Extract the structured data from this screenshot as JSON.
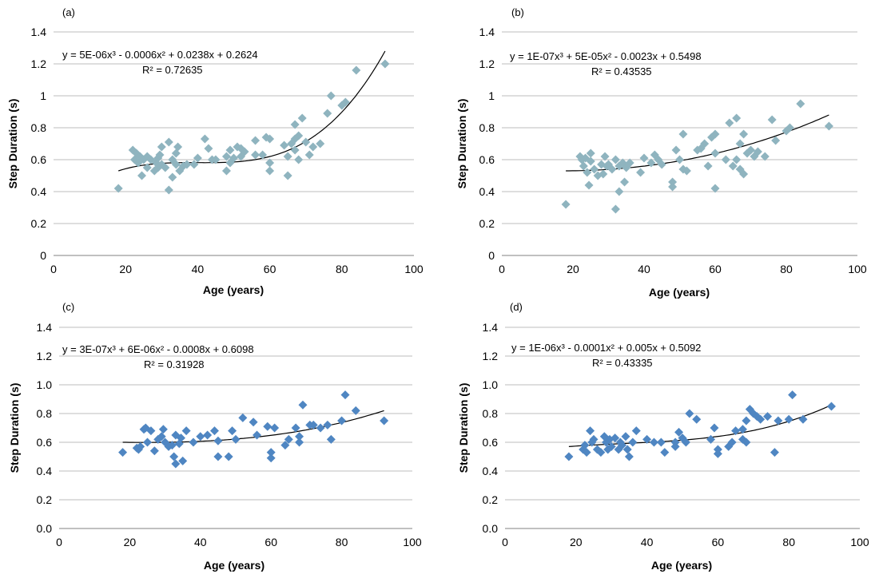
{
  "chart_data": [
    {
      "type": "scatter",
      "panel_label": "(a)",
      "xlabel": "Age (years)",
      "ylabel": "Step Duration (s)",
      "xlim": [
        0,
        100
      ],
      "ylim": [
        0,
        1.4
      ],
      "xticks": [
        "0",
        "20",
        "40",
        "60",
        "80",
        "100"
      ],
      "yticks": [
        "0",
        "0.2",
        "0.4",
        "0.6",
        "0.8",
        "1",
        "1.2",
        "1.4"
      ],
      "marker_color": "#8fb4bf",
      "grid": "horizontal",
      "equation": "y = 5E-06x³ - 0.0006x² + 0.0238x + 0.2624",
      "r_squared": "R² = 0.72635",
      "trend": {
        "coefficients": [
          5e-06,
          -0.0006,
          0.0238,
          0.2624
        ],
        "x_range": [
          18,
          92
        ],
        "y_at_x_min": 0.53,
        "y_at_x_max": 1.28
      },
      "points": [
        [
          18,
          0.42
        ],
        [
          22,
          0.66
        ],
        [
          22.5,
          0.6
        ],
        [
          23,
          0.64
        ],
        [
          23.5,
          0.58
        ],
        [
          24,
          0.62
        ],
        [
          24.5,
          0.5
        ],
        [
          25,
          0.6
        ],
        [
          26,
          0.62
        ],
        [
          26,
          0.55
        ],
        [
          27,
          0.6
        ],
        [
          28,
          0.53
        ],
        [
          28.5,
          0.58
        ],
        [
          29,
          0.61
        ],
        [
          29,
          0.55
        ],
        [
          29.5,
          0.63
        ],
        [
          30,
          0.68
        ],
        [
          30,
          0.57
        ],
        [
          31,
          0.55
        ],
        [
          32,
          0.71
        ],
        [
          32,
          0.41
        ],
        [
          33,
          0.49
        ],
        [
          33,
          0.6
        ],
        [
          34,
          0.57
        ],
        [
          34,
          0.64
        ],
        [
          34.5,
          0.68
        ],
        [
          35,
          0.53
        ],
        [
          36,
          0.56
        ],
        [
          37,
          0.57
        ],
        [
          39,
          0.57
        ],
        [
          40,
          0.61
        ],
        [
          42,
          0.73
        ],
        [
          43,
          0.67
        ],
        [
          44,
          0.6
        ],
        [
          45,
          0.6
        ],
        [
          48,
          0.62
        ],
        [
          48,
          0.53
        ],
        [
          49,
          0.66
        ],
        [
          49,
          0.58
        ],
        [
          50,
          0.61
        ],
        [
          51,
          0.68
        ],
        [
          52,
          0.62
        ],
        [
          52,
          0.67
        ],
        [
          53,
          0.65
        ],
        [
          56,
          0.63
        ],
        [
          56,
          0.72
        ],
        [
          58,
          0.63
        ],
        [
          59,
          0.74
        ],
        [
          60,
          0.73
        ],
        [
          60,
          0.58
        ],
        [
          60,
          0.53
        ],
        [
          64,
          0.69
        ],
        [
          65,
          0.5
        ],
        [
          65,
          0.62
        ],
        [
          66,
          0.7
        ],
        [
          67,
          0.66
        ],
        [
          67,
          0.73
        ],
        [
          67,
          0.82
        ],
        [
          68,
          0.6
        ],
        [
          68,
          0.75
        ],
        [
          69,
          0.86
        ],
        [
          70,
          0.71
        ],
        [
          71,
          0.63
        ],
        [
          72,
          0.68
        ],
        [
          74,
          0.7
        ],
        [
          76,
          0.89
        ],
        [
          77,
          1.0
        ],
        [
          80,
          0.94
        ],
        [
          81,
          0.96
        ],
        [
          84,
          1.16
        ],
        [
          92,
          1.2
        ]
      ]
    },
    {
      "type": "scatter",
      "panel_label": "(b)",
      "xlabel": "Age (years)",
      "ylabel": "Step Duration (s)",
      "xlim": [
        0,
        100
      ],
      "ylim": [
        0,
        1.4
      ],
      "xticks": [
        "0",
        "20",
        "40",
        "60",
        "80",
        "100"
      ],
      "yticks": [
        "0",
        "0.2",
        "0.4",
        "0.6",
        "0.8",
        "1",
        "1.2",
        "1.4"
      ],
      "marker_color": "#8fb4bf",
      "grid": "horizontal",
      "equation": "y = 1E-07x³ + 5E-05x² - 0.0023x + 0.5498",
      "r_squared": "R² = 0.43535",
      "trend": {
        "coefficients": [
          1e-07,
          5e-05,
          -0.0023,
          0.5498
        ],
        "x_range": [
          18,
          92
        ],
        "y_at_x_min": 0.53,
        "y_at_x_max": 0.88
      },
      "points": [
        [
          18,
          0.32
        ],
        [
          22,
          0.62
        ],
        [
          22.5,
          0.6
        ],
        [
          23,
          0.56
        ],
        [
          23.5,
          0.61
        ],
        [
          24,
          0.52
        ],
        [
          24.5,
          0.44
        ],
        [
          25,
          0.64
        ],
        [
          25,
          0.59
        ],
        [
          26,
          0.54
        ],
        [
          27,
          0.5
        ],
        [
          28,
          0.57
        ],
        [
          28.5,
          0.51
        ],
        [
          29,
          0.62
        ],
        [
          29.5,
          0.56
        ],
        [
          30,
          0.57
        ],
        [
          31,
          0.54
        ],
        [
          32,
          0.29
        ],
        [
          32,
          0.6
        ],
        [
          33,
          0.4
        ],
        [
          33,
          0.56
        ],
        [
          34,
          0.58
        ],
        [
          34.5,
          0.46
        ],
        [
          35,
          0.55
        ],
        [
          36,
          0.58
        ],
        [
          39,
          0.52
        ],
        [
          40,
          0.61
        ],
        [
          42,
          0.58
        ],
        [
          43,
          0.63
        ],
        [
          44,
          0.6
        ],
        [
          45,
          0.57
        ],
        [
          48,
          0.46
        ],
        [
          48,
          0.43
        ],
        [
          49,
          0.66
        ],
        [
          50,
          0.6
        ],
        [
          51,
          0.76
        ],
        [
          51,
          0.54
        ],
        [
          52,
          0.53
        ],
        [
          55,
          0.66
        ],
        [
          56,
          0.67
        ],
        [
          57,
          0.7
        ],
        [
          58,
          0.56
        ],
        [
          59,
          0.74
        ],
        [
          60,
          0.42
        ],
        [
          60,
          0.64
        ],
        [
          60,
          0.76
        ],
        [
          63,
          0.6
        ],
        [
          64,
          0.83
        ],
        [
          65,
          0.56
        ],
        [
          66,
          0.86
        ],
        [
          66,
          0.6
        ],
        [
          67,
          0.7
        ],
        [
          67,
          0.54
        ],
        [
          68,
          0.51
        ],
        [
          68,
          0.76
        ],
        [
          69,
          0.64
        ],
        [
          70,
          0.66
        ],
        [
          71,
          0.62
        ],
        [
          72,
          0.65
        ],
        [
          74,
          0.62
        ],
        [
          76,
          0.85
        ],
        [
          77,
          0.72
        ],
        [
          80,
          0.78
        ],
        [
          81,
          0.8
        ],
        [
          84,
          0.95
        ],
        [
          92,
          0.81
        ]
      ]
    },
    {
      "type": "scatter",
      "panel_label": "(c)",
      "xlabel": "Age (years)",
      "ylabel": "Step Duration (s)",
      "xlim": [
        0,
        100
      ],
      "ylim": [
        0,
        1.4
      ],
      "xticks": [
        "0",
        "20",
        "40",
        "60",
        "80",
        "100"
      ],
      "yticks": [
        "0.0",
        "0.2",
        "0.4",
        "0.6",
        "0.8",
        "1.0",
        "1.2",
        "1.4"
      ],
      "marker_color": "#4f86c2",
      "grid": "horizontal",
      "equation": "y = 3E-07x³ + 6E-06x² - 0.0008x + 0.6098",
      "r_squared": "R² = 0.31928",
      "trend": {
        "coefficients": [
          3e-07,
          6e-06,
          -0.0008,
          0.6098
        ],
        "x_range": [
          18,
          92
        ],
        "y_at_x_min": 0.6,
        "y_at_x_max": 0.82
      },
      "points": [
        [
          18,
          0.53
        ],
        [
          22,
          0.56
        ],
        [
          22.5,
          0.55
        ],
        [
          23,
          0.57
        ],
        [
          24,
          0.69
        ],
        [
          24.5,
          0.7
        ],
        [
          25,
          0.6
        ],
        [
          26,
          0.68
        ],
        [
          27,
          0.54
        ],
        [
          28,
          0.62
        ],
        [
          29,
          0.64
        ],
        [
          29.5,
          0.69
        ],
        [
          30,
          0.6
        ],
        [
          31,
          0.57
        ],
        [
          32,
          0.58
        ],
        [
          32.5,
          0.5
        ],
        [
          33,
          0.45
        ],
        [
          33,
          0.65
        ],
        [
          34,
          0.59
        ],
        [
          34.5,
          0.63
        ],
        [
          35,
          0.47
        ],
        [
          36,
          0.68
        ],
        [
          38,
          0.6
        ],
        [
          40,
          0.64
        ],
        [
          42,
          0.65
        ],
        [
          44,
          0.68
        ],
        [
          45,
          0.5
        ],
        [
          45,
          0.61
        ],
        [
          48,
          0.5
        ],
        [
          49,
          0.68
        ],
        [
          50,
          0.62
        ],
        [
          52,
          0.77
        ],
        [
          55,
          0.74
        ],
        [
          56,
          0.65
        ],
        [
          59,
          0.71
        ],
        [
          60,
          0.49
        ],
        [
          60,
          0.53
        ],
        [
          61,
          0.7
        ],
        [
          64,
          0.58
        ],
        [
          65,
          0.62
        ],
        [
          67,
          0.7
        ],
        [
          68,
          0.6
        ],
        [
          68,
          0.64
        ],
        [
          69,
          0.86
        ],
        [
          71,
          0.72
        ],
        [
          72,
          0.72
        ],
        [
          74,
          0.7
        ],
        [
          76,
          0.72
        ],
        [
          77,
          0.62
        ],
        [
          80,
          0.75
        ],
        [
          81,
          0.93
        ],
        [
          84,
          0.82
        ],
        [
          92,
          0.75
        ]
      ]
    },
    {
      "type": "scatter",
      "panel_label": "(d)",
      "xlabel": "Age (years)",
      "ylabel": "Step Duration (s)",
      "xlim": [
        0,
        100
      ],
      "ylim": [
        0,
        1.4
      ],
      "xticks": [
        "0",
        "20",
        "40",
        "60",
        "80",
        "100"
      ],
      "yticks": [
        "0.0",
        "0.2",
        "0.4",
        "0.6",
        "0.8",
        "1.0",
        "1.2",
        "1.4"
      ],
      "marker_color": "#4f86c2",
      "grid": "horizontal",
      "equation": "y = 1E-06x³ - 0.0001x² + 0.005x + 0.5092",
      "r_squared": "R² = 0.43335",
      "trend": {
        "coefficients": [
          1e-06,
          -0.0001,
          0.005,
          0.5092
        ],
        "x_range": [
          18,
          92
        ],
        "y_at_x_min": 0.57,
        "y_at_x_max": 0.86
      },
      "points": [
        [
          18,
          0.5
        ],
        [
          22,
          0.55
        ],
        [
          22.5,
          0.58
        ],
        [
          23,
          0.53
        ],
        [
          24,
          0.68
        ],
        [
          24.5,
          0.6
        ],
        [
          25,
          0.62
        ],
        [
          26,
          0.55
        ],
        [
          27,
          0.53
        ],
        [
          28,
          0.64
        ],
        [
          28.5,
          0.6
        ],
        [
          29,
          0.55
        ],
        [
          29.5,
          0.62
        ],
        [
          30,
          0.57
        ],
        [
          31,
          0.63
        ],
        [
          32,
          0.55
        ],
        [
          32.5,
          0.6
        ],
        [
          33,
          0.58
        ],
        [
          34,
          0.64
        ],
        [
          34.5,
          0.55
        ],
        [
          35,
          0.5
        ],
        [
          36,
          0.6
        ],
        [
          37,
          0.68
        ],
        [
          40,
          0.62
        ],
        [
          42,
          0.6
        ],
        [
          44,
          0.6
        ],
        [
          45,
          0.53
        ],
        [
          48,
          0.57
        ],
        [
          48,
          0.6
        ],
        [
          49,
          0.67
        ],
        [
          50,
          0.63
        ],
        [
          51,
          0.6
        ],
        [
          52,
          0.8
        ],
        [
          54,
          0.76
        ],
        [
          58,
          0.62
        ],
        [
          59,
          0.7
        ],
        [
          60,
          0.55
        ],
        [
          60,
          0.52
        ],
        [
          63,
          0.57
        ],
        [
          64,
          0.6
        ],
        [
          65,
          0.68
        ],
        [
          67,
          0.69
        ],
        [
          67,
          0.62
        ],
        [
          68,
          0.75
        ],
        [
          68,
          0.6
        ],
        [
          69,
          0.83
        ],
        [
          70,
          0.8
        ],
        [
          71,
          0.78
        ],
        [
          72,
          0.76
        ],
        [
          74,
          0.78
        ],
        [
          76,
          0.53
        ],
        [
          77,
          0.75
        ],
        [
          80,
          0.76
        ],
        [
          81,
          0.93
        ],
        [
          84,
          0.76
        ],
        [
          92,
          0.85
        ]
      ]
    }
  ]
}
